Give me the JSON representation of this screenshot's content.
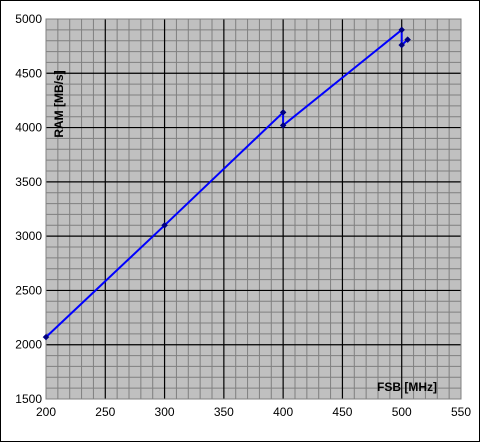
{
  "chart_data": {
    "type": "line",
    "title": "",
    "xlabel": "FSB [MHz]",
    "ylabel": "RAM [MB/s]",
    "xlim": [
      200,
      550
    ],
    "ylim": [
      1500,
      5000
    ],
    "x_ticks": [
      200,
      250,
      300,
      350,
      400,
      450,
      500,
      550
    ],
    "y_ticks": [
      1500,
      2000,
      2500,
      3000,
      3500,
      4000,
      4500,
      5000
    ],
    "grid": true,
    "legend": "none",
    "series": [
      {
        "x": [
          200,
          300,
          400,
          400,
          500,
          500,
          505
        ],
        "y": [
          2070,
          3100,
          4140,
          4020,
          4900,
          4760,
          4810
        ]
      }
    ]
  },
  "colors": {
    "plot_background": "#c0c0c0",
    "major_grid": "#000000",
    "minor_grid": "#7f7f7f",
    "series_line": "#0000ff",
    "markers": "#000080"
  }
}
